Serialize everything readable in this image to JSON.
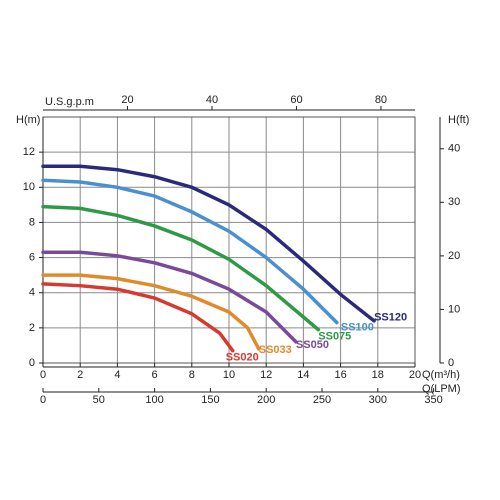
{
  "chart_data": {
    "type": "line",
    "ylabel": "H(m)",
    "ylim": [
      0,
      14
    ],
    "yticks": [
      0,
      2,
      4,
      6,
      8,
      10,
      12
    ],
    "xlabel": "Q(m³/h)",
    "xlim": [
      0,
      20
    ],
    "xticks": [
      0,
      2,
      4,
      6,
      8,
      10,
      12,
      14,
      16,
      18,
      20
    ],
    "x2label": "U.S.g.p.m",
    "x2lim": [
      0,
      88.06
    ],
    "x2ticks": [
      20,
      40,
      60,
      80
    ],
    "x3label": "Q(LPM)",
    "x3lim": [
      0,
      333.33
    ],
    "x3ticks": [
      0,
      50,
      100,
      150,
      200,
      250,
      300,
      350
    ],
    "y2label": "H(ft)",
    "y2lim": [
      0,
      45.93
    ],
    "y2ticks": [
      0,
      10,
      20,
      30,
      40
    ],
    "grid": true,
    "series": [
      {
        "name": "SS120",
        "color": "#2b2a7a",
        "x": [
          0,
          2,
          4,
          6,
          8,
          10,
          12,
          14,
          16,
          17.8
        ],
        "values": [
          11.2,
          11.2,
          11.0,
          10.6,
          10.0,
          9.0,
          7.6,
          5.8,
          3.9,
          2.4
        ]
      },
      {
        "name": "SS100",
        "color": "#4a90d0",
        "x": [
          0,
          2,
          4,
          6,
          8,
          10,
          12,
          14,
          15.8
        ],
        "values": [
          10.4,
          10.3,
          10.0,
          9.5,
          8.6,
          7.5,
          6.0,
          4.2,
          2.3
        ]
      },
      {
        "name": "SS075",
        "color": "#2e9a47",
        "x": [
          0,
          2,
          4,
          6,
          8,
          10,
          12,
          14.8
        ],
        "values": [
          8.9,
          8.8,
          8.4,
          7.8,
          7.0,
          5.9,
          4.4,
          1.9
        ]
      },
      {
        "name": "SS050",
        "color": "#7a4a9a",
        "x": [
          0,
          2,
          4,
          6,
          8,
          10,
          12,
          13.6
        ],
        "values": [
          6.3,
          6.3,
          6.1,
          5.7,
          5.1,
          4.2,
          2.9,
          1.2
        ]
      },
      {
        "name": "SS033",
        "color": "#e08a2a",
        "x": [
          0,
          2,
          4,
          6,
          8,
          10,
          11,
          11.6
        ],
        "values": [
          5.0,
          5.0,
          4.8,
          4.4,
          3.8,
          2.9,
          2.0,
          0.8
        ]
      },
      {
        "name": "SS020",
        "color": "#d6392e",
        "x": [
          0,
          2,
          4,
          6,
          8,
          9.5,
          10.2
        ],
        "values": [
          4.5,
          4.4,
          4.2,
          3.7,
          2.8,
          1.7,
          0.7
        ]
      }
    ]
  }
}
